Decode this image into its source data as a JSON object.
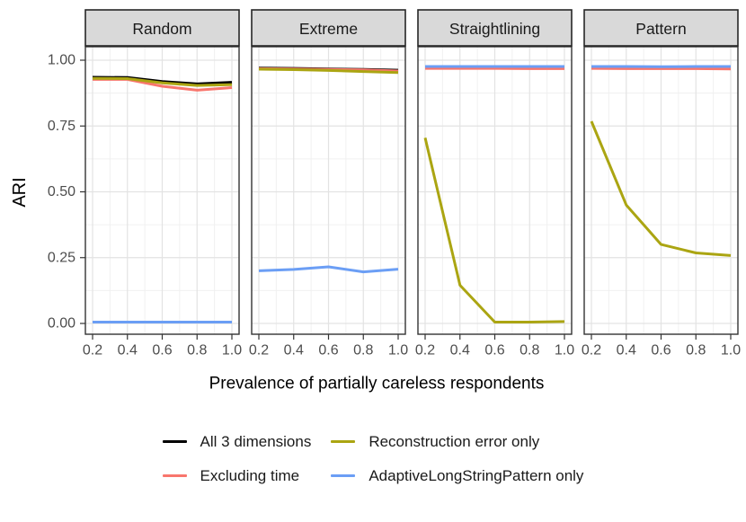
{
  "chart_data": {
    "type": "line",
    "xlabel": "Prevalence of partially careless respondents",
    "ylabel": "ARI",
    "xlim": [
      0.2,
      1.0
    ],
    "ylim": [
      0.0,
      1.0
    ],
    "grid": true,
    "legend_position": "bottom",
    "x": [
      0.2,
      0.4,
      0.6,
      0.8,
      1.0
    ],
    "x_tick_labels": [
      "0.2",
      "0.4",
      "0.6",
      "0.8",
      "1.0"
    ],
    "x_minor_ticks": [
      0.3,
      0.5,
      0.7,
      0.9
    ],
    "y_tick_values": [
      0.0,
      0.25,
      0.5,
      0.75,
      1.0
    ],
    "y_tick_labels": [
      "0.00",
      "0.25",
      "0.50",
      "0.75",
      "1.00"
    ],
    "y_minor_ticks": [
      0.125,
      0.375,
      0.625,
      0.875
    ],
    "series": [
      {
        "name": "All 3 dimensions",
        "color": "#000000"
      },
      {
        "name": "Excluding time",
        "color": "#F8766D"
      },
      {
        "name": "Reconstruction error only",
        "color": "#ABA512"
      },
      {
        "name": "AdaptiveLongStringPattern only",
        "color": "#6B9EF5"
      }
    ],
    "facets": [
      {
        "title": "Random",
        "series_values": [
          [
            0.935,
            0.934,
            0.919,
            0.91,
            0.916
          ],
          [
            0.927,
            0.927,
            0.901,
            0.886,
            0.896
          ],
          [
            0.931,
            0.93,
            0.914,
            0.904,
            0.907
          ],
          [
            0.005,
            0.005,
            0.005,
            0.005,
            0.005
          ]
        ]
      },
      {
        "title": "Extreme",
        "series_values": [
          [
            0.97,
            0.969,
            0.967,
            0.965,
            0.962
          ],
          [
            0.968,
            0.967,
            0.965,
            0.963,
            0.959
          ],
          [
            0.966,
            0.964,
            0.961,
            0.957,
            0.953
          ],
          [
            0.2,
            0.205,
            0.215,
            0.196,
            0.206
          ]
        ]
      },
      {
        "title": "Straightlining",
        "series_values": [
          [
            0.972,
            0.972,
            0.972,
            0.972,
            0.972
          ],
          [
            0.969,
            0.969,
            0.969,
            0.968,
            0.968
          ],
          [
            0.705,
            0.145,
            0.005,
            0.005,
            0.007
          ],
          [
            0.976,
            0.976,
            0.976,
            0.976,
            0.976
          ]
        ]
      },
      {
        "title": "Pattern",
        "series_values": [
          [
            0.972,
            0.972,
            0.972,
            0.972,
            0.972
          ],
          [
            0.969,
            0.968,
            0.968,
            0.968,
            0.967
          ],
          [
            0.768,
            0.45,
            0.3,
            0.268,
            0.258
          ],
          [
            0.976,
            0.976,
            0.975,
            0.976,
            0.976
          ]
        ]
      }
    ]
  },
  "style_colors": {
    "strip_fill": "#D9D9D9",
    "strip_border": "#262626",
    "panel_border": "#333333",
    "grid_major": "#E3E3E3",
    "grid_minor": "#F0F0F0",
    "tick_mark": "#333333",
    "tick_label": "#4D4D4D",
    "axis_title": "#000000",
    "strip_text": "#1A1A1A"
  }
}
